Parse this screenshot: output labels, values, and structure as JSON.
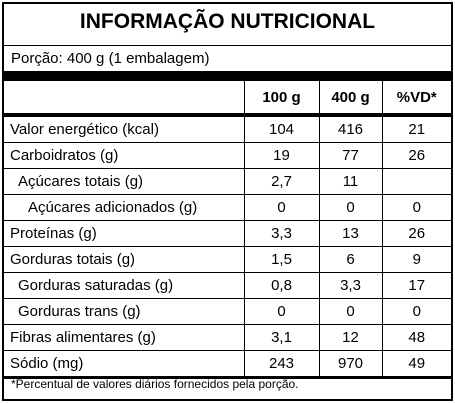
{
  "header": {
    "title": "INFORMAÇÃO NUTRICIONAL",
    "portion": "Porção: 400 g (1 embalagem)"
  },
  "table": {
    "columns": [
      "100 g",
      "400 g",
      "%VD*"
    ],
    "rows": [
      [
        "Valor energético (kcal)",
        "104",
        "416",
        "21"
      ],
      [
        "Carboidratos (g)",
        "19",
        "77",
        "26"
      ],
      [
        "Açúcares totais (g)",
        "2,7",
        "11",
        null
      ],
      [
        "Açúcares adicionados (g)",
        "0",
        "0",
        "0"
      ],
      [
        "Proteínas (g)",
        "3,3",
        "13",
        "26"
      ],
      [
        "Gorduras totais (g)",
        "1,5",
        "6",
        "9"
      ],
      [
        "Gorduras saturadas (g)",
        "0,8",
        "3,3",
        "17"
      ],
      [
        "Gorduras trans (g)",
        "0",
        "0",
        "0"
      ],
      [
        "Fibras alimentares (g)",
        "3,1",
        "12",
        "48"
      ],
      [
        "Sódio (mg)",
        "243",
        "970",
        "49"
      ]
    ]
  },
  "footnote": "*Percentual de valores diários fornecidos pela porção."
}
